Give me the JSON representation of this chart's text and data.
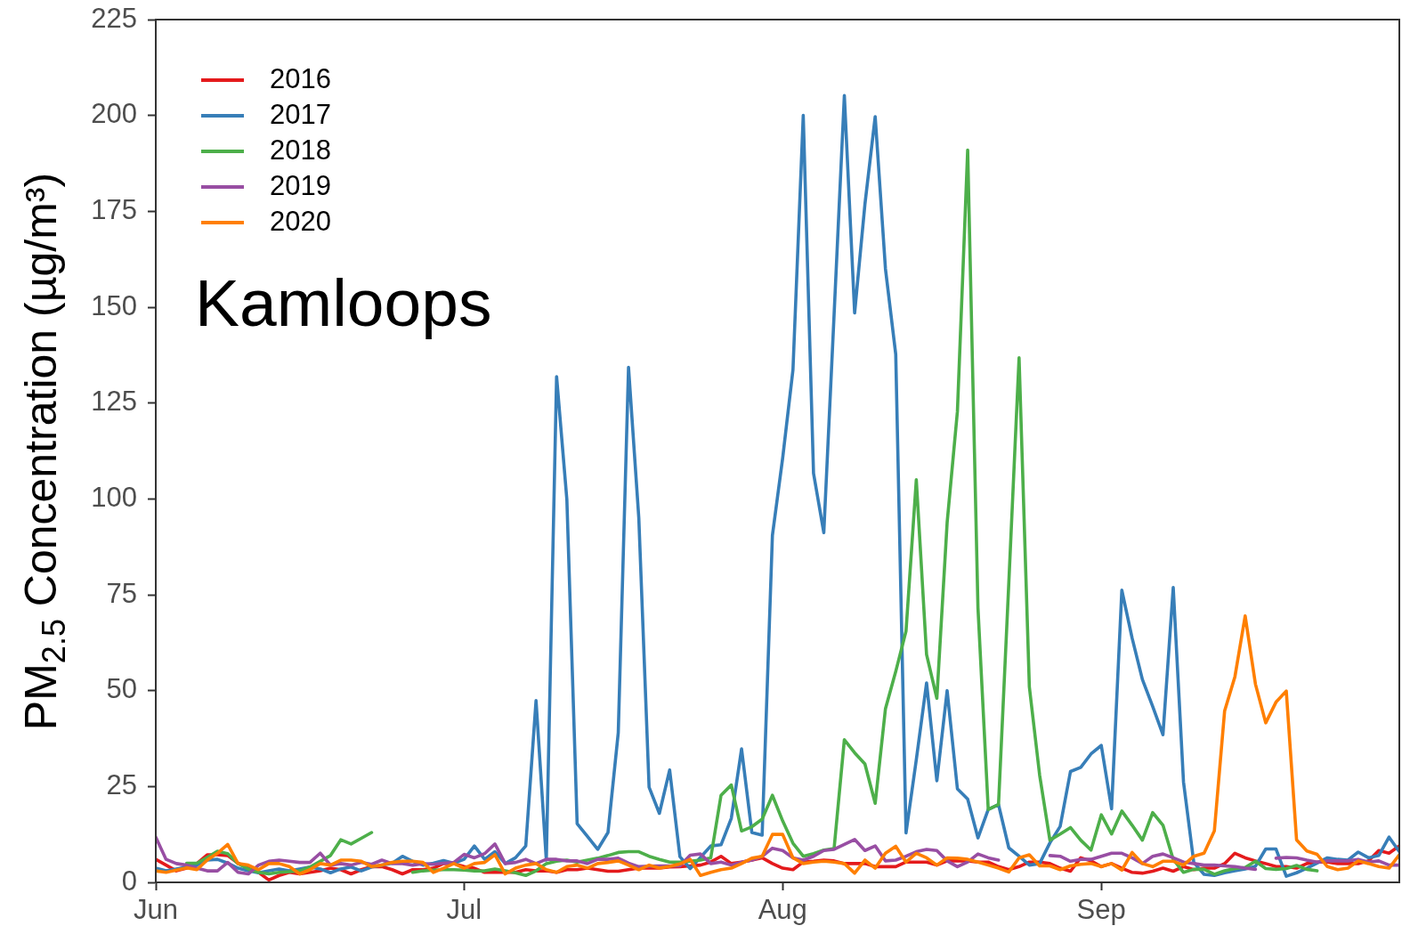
{
  "chart_data": {
    "type": "line",
    "ylabel": "PM$_{2.5}$ Concentration (µg/m³)",
    "annotations": [
      "Kamloops"
    ],
    "legend": "top left",
    "xlim": [
      "--06-01",
      "--09-30"
    ],
    "xticks": [
      {
        "value": "--06-01",
        "label": "Jun"
      },
      {
        "value": "--07-01",
        "label": "Jul"
      },
      {
        "value": "--08-01",
        "label": "Aug"
      },
      {
        "value": "--09-01",
        "label": "Sep"
      }
    ],
    "ylim": [
      0,
      225
    ],
    "yticks": [
      0,
      25,
      50,
      75,
      100,
      125,
      150,
      175,
      200,
      225
    ],
    "x": [
      "--06-01",
      "--06-02",
      "--06-03",
      "--06-04",
      "--06-05",
      "--06-06",
      "--06-07",
      "--06-08",
      "--06-09",
      "--06-10",
      "--06-11",
      "--06-12",
      "--06-13",
      "--06-14",
      "--06-15",
      "--06-16",
      "--06-17",
      "--06-18",
      "--06-19",
      "--06-20",
      "--06-21",
      "--06-22",
      "--06-23",
      "--06-24",
      "--06-25",
      "--06-26",
      "--06-27",
      "--06-28",
      "--06-29",
      "--06-30",
      "--07-01",
      "--07-02",
      "--07-03",
      "--07-04",
      "--07-05",
      "--07-06",
      "--07-07",
      "--07-08",
      "--07-09",
      "--07-10",
      "--07-11",
      "--07-12",
      "--07-13",
      "--07-14",
      "--07-15",
      "--07-16",
      "--07-17",
      "--07-18",
      "--07-19",
      "--07-20",
      "--07-21",
      "--07-22",
      "--07-23",
      "--07-24",
      "--07-25",
      "--07-26",
      "--07-27",
      "--07-28",
      "--07-29",
      "--07-30",
      "--07-31",
      "--08-01",
      "--08-02",
      "--08-03",
      "--08-04",
      "--08-05",
      "--08-06",
      "--08-07",
      "--08-08",
      "--08-09",
      "--08-10",
      "--08-11",
      "--08-12",
      "--08-13",
      "--08-14",
      "--08-15",
      "--08-16",
      "--08-17",
      "--08-18",
      "--08-19",
      "--08-20",
      "--08-21",
      "--08-22",
      "--08-23",
      "--08-24",
      "--08-25",
      "--08-26",
      "--08-27",
      "--08-28",
      "--08-29",
      "--08-30",
      "--08-31",
      "--09-01",
      "--09-02",
      "--09-03",
      "--09-04",
      "--09-05",
      "--09-06",
      "--09-07",
      "--09-08",
      "--09-09",
      "--09-10",
      "--09-11",
      "--09-12",
      "--09-13",
      "--09-14",
      "--09-15",
      "--09-16",
      "--09-17",
      "--09-18",
      "--09-19",
      "--09-20",
      "--09-21",
      "--09-22",
      "--09-23",
      "--09-24",
      "--09-25",
      "--09-26",
      "--09-27",
      "--09-28",
      "--09-29",
      "--09-30"
    ],
    "series": [
      {
        "name": "2016",
        "color": "#e41a1c",
        "values": [
          6,
          4.5,
          3,
          3.7,
          4.9,
          7.2,
          7.2,
          7,
          5,
          3.7,
          2.6,
          0.6,
          1.8,
          2.6,
          2.2,
          2.6,
          3,
          3.7,
          3.3,
          2.2,
          3.3,
          4.1,
          4.1,
          3.3,
          2.2,
          3.3,
          3.3,
          3.7,
          4.9,
          4.9,
          4.1,
          3.7,
          2.6,
          2.6,
          2.6,
          2.6,
          3.3,
          3,
          3,
          2.6,
          3.3,
          3.3,
          3.7,
          3.3,
          2.9,
          2.9,
          3.3,
          3.7,
          3.7,
          3.7,
          4,
          4.1,
          4.3,
          4.5,
          5.3,
          6.8,
          4.9,
          5.3,
          5.8,
          6.4,
          4.9,
          3.7,
          3.3,
          5.3,
          5.5,
          5.8,
          5.6,
          4.9,
          4.9,
          4.9,
          4.1,
          4.1,
          4.1,
          5.3,
          5.3,
          5.3,
          4.5,
          5.6,
          5.6,
          5.6,
          5.3,
          5.3,
          4.1,
          3.3,
          4.1,
          5.3,
          5.3,
          4.9,
          3.7,
          2.9,
          6.4,
          5.6,
          4.1,
          4.9,
          3.7,
          2.6,
          2.4,
          2.9,
          3.7,
          2.9,
          4.1,
          3.3,
          3.7,
          3.7,
          4.9,
          7.6,
          6.4,
          5.6,
          4.9,
          4.1,
          4.1,
          3.7,
          4.9,
          5.3,
          5.3,
          4.9,
          4.9,
          4.9,
          5.6,
          8.3,
          7.6,
          9.5
        ]
      },
      {
        "name": "2017",
        "color": "#377eb8",
        "values": [
          3.7,
          3,
          3.5,
          4,
          4.5,
          5.8,
          6,
          5,
          3.7,
          3,
          2.5,
          3,
          3.5,
          3,
          3.5,
          4,
          3.5,
          2.5,
          3.5,
          4,
          3,
          4,
          4.5,
          5,
          6.8,
          5.5,
          4.5,
          5,
          5.7,
          5,
          6,
          9.5,
          6,
          8,
          4.9,
          6.4,
          9.5,
          47.4,
          5.8,
          131.9,
          99.8,
          15.3,
          12,
          8.6,
          13,
          39,
          134.3,
          95,
          24.8,
          18,
          29.3,
          6.7,
          3.6,
          6.5,
          9.5,
          9.8,
          16.7,
          34.8,
          13,
          12.3,
          90.5,
          110.7,
          133.7,
          200,
          106.7,
          91.2,
          148,
          205.2,
          148.5,
          176.8,
          199.7,
          160,
          137.7,
          12.9,
          32,
          52,
          26.5,
          50,
          24.4,
          21.7,
          11.6,
          19,
          20.3,
          9,
          6.8,
          4.5,
          4.9,
          10.3,
          14.6,
          28.9,
          30,
          33.5,
          35.7,
          19.2,
          76.2,
          63.7,
          52.9,
          45.9,
          38.5,
          76.9,
          26.2,
          5.2,
          2.1,
          1.8,
          2.5,
          3,
          3.5,
          4.2,
          8.7,
          8.7,
          1.6,
          2.5,
          3.7,
          5,
          6.4,
          6,
          5.8,
          7.9,
          6.4,
          7,
          11.8,
          8
        ]
      },
      {
        "name": "2018",
        "color": "#4daf4a",
        "values": [
          null,
          null,
          null,
          5,
          5,
          6.5,
          8.1,
          7.5,
          4.9,
          3.5,
          2.6,
          2.2,
          2.6,
          2.8,
          3,
          4,
          5.5,
          7,
          11.1,
          10,
          11.5,
          13,
          null,
          null,
          null,
          2.6,
          3,
          3.2,
          3.3,
          3.3,
          3.2,
          3,
          3,
          3.5,
          3,
          2.5,
          1.8,
          3,
          4.9,
          5.5,
          5.8,
          5.3,
          5.8,
          6.3,
          7,
          7.8,
          8,
          8,
          6.8,
          6,
          5.3,
          5.3,
          5.5,
          5.8,
          6.4,
          22.7,
          25.4,
          13.4,
          14.5,
          16.5,
          22.7,
          16,
          10.2,
          6.8,
          7.5,
          8.4,
          8.8,
          37.2,
          33.8,
          30.9,
          20.6,
          45.3,
          55,
          65.5,
          105,
          59.4,
          48,
          93.8,
          122.8,
          191,
          71.6,
          19,
          20.3,
          78,
          136.8,
          51,
          28,
          11,
          12.6,
          14.3,
          11,
          8.4,
          17.6,
          12.6,
          18.6,
          14.9,
          11,
          18.2,
          14.9,
          6,
          2.6,
          3.4,
          3.4,
          2.1,
          3,
          3.6,
          3.9,
          5.5,
          3.6,
          3.4,
          3.6,
          4.4,
          3.4,
          3,
          null,
          null,
          null,
          null,
          null,
          null,
          null,
          null
        ]
      },
      {
        "name": "2019",
        "color": "#984ea3",
        "values": [
          11.8,
          6,
          4.9,
          4.5,
          3.7,
          3,
          3,
          5.2,
          2.6,
          2.2,
          4.5,
          5.5,
          5.8,
          5.5,
          5.2,
          5.2,
          7.6,
          4.5,
          4.9,
          4.5,
          5.2,
          4.7,
          5.8,
          4.9,
          4.9,
          4.5,
          4.9,
          4.7,
          5,
          5.2,
          7.3,
          6.4,
          7.5,
          10,
          4.9,
          5.2,
          6,
          4.9,
          6,
          6,
          5.6,
          5.6,
          4.9,
          6,
          6,
          6.3,
          5,
          4.1,
          4.2,
          4.3,
          4.3,
          4.3,
          7.1,
          7.4,
          4.9,
          5.3,
          4.5,
          5.3,
          5.8,
          6.8,
          8.9,
          8.3,
          6.4,
          5.8,
          6.8,
          8.3,
          8.6,
          9.9,
          11.2,
          8.3,
          9.5,
          5.6,
          5.8,
          6.8,
          8,
          8.6,
          8.3,
          5.6,
          4.1,
          5.3,
          7.4,
          6.4,
          5.8,
          null,
          null,
          null,
          null,
          7,
          6.8,
          5.5,
          6,
          6,
          6.8,
          7.6,
          7.6,
          6.4,
          4.9,
          6.8,
          7.4,
          6.4,
          5.3,
          4.9,
          4.5,
          4.5,
          4.3,
          4.1,
          3.7,
          3.4,
          null,
          6.3,
          6.5,
          6.4,
          5.8,
          5.3,
          5.6,
          5.6,
          5.6,
          6,
          5.3,
          5.6,
          4.5,
          4.5
        ]
      },
      {
        "name": "2020",
        "color": "#ff7f00",
        "values": [
          3,
          2.6,
          3.2,
          3.8,
          3.3,
          5.8,
          7.6,
          9.9,
          4.9,
          4.5,
          3.3,
          4.9,
          4.9,
          4.1,
          2.2,
          3.3,
          4.9,
          4.5,
          5.8,
          5.8,
          5.5,
          4.1,
          4.5,
          5.2,
          5.5,
          5.5,
          5.2,
          2.6,
          3.7,
          4.9,
          3.7,
          4.9,
          5.2,
          7.2,
          2.2,
          3.7,
          4.5,
          4.9,
          3.3,
          2.6,
          4.1,
          4.5,
          3.7,
          4.9,
          5.2,
          5.6,
          4.5,
          3.3,
          4.5,
          3.7,
          4.2,
          4.8,
          6,
          1.8,
          2.6,
          3.3,
          3.7,
          4.9,
          6.3,
          6.8,
          12.5,
          12.5,
          6.4,
          4.9,
          5.3,
          5.5,
          5.3,
          4.9,
          2.4,
          5.8,
          3.7,
          7.6,
          9.4,
          5.3,
          7.6,
          6.4,
          4.5,
          6.4,
          6.3,
          6,
          5.3,
          4.5,
          3.7,
          2.7,
          6.4,
          7.2,
          4.3,
          4.3,
          3.3,
          4.3,
          4.7,
          4.9,
          4.1,
          4.9,
          3.2,
          7.8,
          4.9,
          4.1,
          5.5,
          5.5,
          4.5,
          6.8,
          7.6,
          13.4,
          44.7,
          53.6,
          69.5,
          51.7,
          41.6,
          47,
          49.9,
          11.1,
          8.2,
          7.3,
          4.1,
          3.3,
          3.7,
          5.6,
          4.9,
          4.1,
          3.7,
          7.2
        ]
      }
    ]
  }
}
